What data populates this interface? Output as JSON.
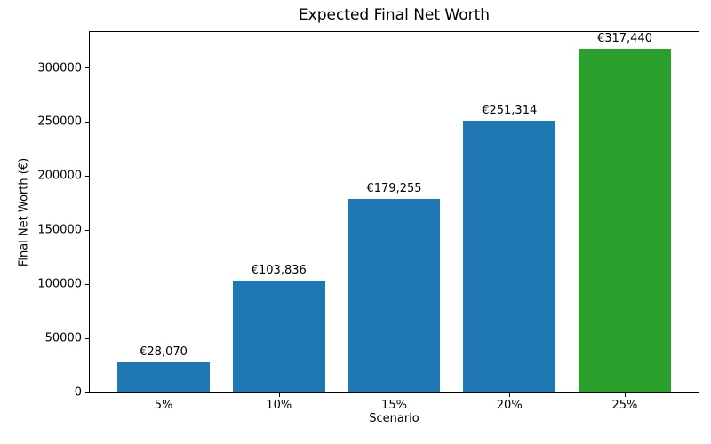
{
  "chart_data": {
    "type": "bar",
    "title": "Expected Final Net Worth",
    "xlabel": "Scenario",
    "ylabel": "Final Net Worth (€)",
    "categories": [
      "5%",
      "10%",
      "15%",
      "20%",
      "25%"
    ],
    "values": [
      28070,
      103836,
      179255,
      251314,
      317440
    ],
    "value_labels": [
      "€28,070",
      "€103,836",
      "€179,255",
      "€251,314",
      "€317,440"
    ],
    "bar_colors": [
      "#1f77b4",
      "#1f77b4",
      "#1f77b4",
      "#1f77b4",
      "#2ca02c"
    ],
    "yticks": [
      0,
      50000,
      100000,
      150000,
      200000,
      250000,
      300000
    ],
    "ytick_labels": [
      "0",
      "50000",
      "100000",
      "150000",
      "200000",
      "250000",
      "300000"
    ],
    "ylim": [
      0,
      333312
    ],
    "grid": false,
    "legend": "none",
    "background": "#ffffff",
    "spine_color": "#000000",
    "text_color": "#000000"
  }
}
